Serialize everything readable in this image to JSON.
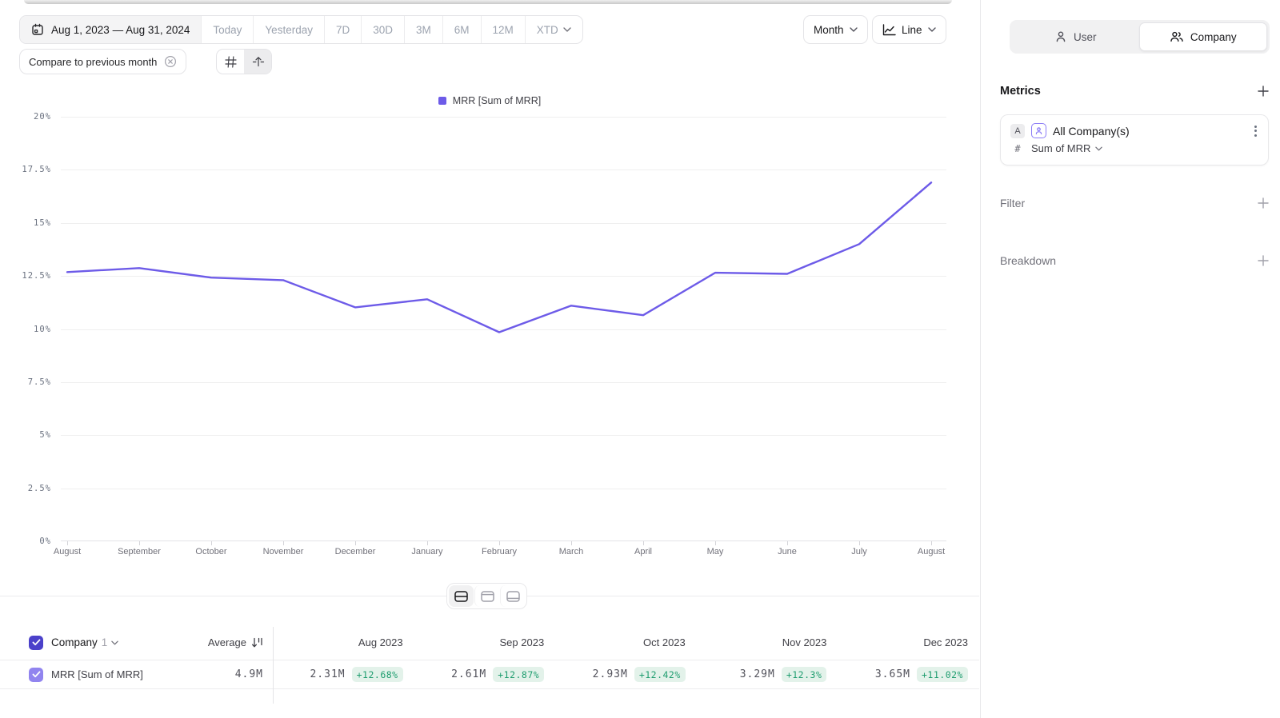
{
  "toolbar": {
    "date_range": "Aug 1, 2023 — Aug 31, 2024",
    "presets": [
      "Today",
      "Yesterday",
      "7D",
      "30D",
      "3M",
      "6M",
      "12M"
    ],
    "xtd_label": "XTD",
    "granularity_label": "Month",
    "chart_type_label": "Line",
    "compare_chip_label": "Compare to previous month"
  },
  "sidebar": {
    "scope_toggle": {
      "user_label": "User",
      "company_label": "Company",
      "selected": "Company"
    },
    "metrics": {
      "title": "Metrics",
      "card": {
        "badge": "A",
        "name": "All Company(s)",
        "agg_prefix": "#",
        "aggregation": "Sum of MRR"
      }
    },
    "filter_label": "Filter",
    "breakdown_label": "Breakdown"
  },
  "chart_data": {
    "type": "line",
    "title": "",
    "legend": [
      "MRR [Sum of MRR]"
    ],
    "legend_position": "top",
    "grid": true,
    "x": [
      "August",
      "September",
      "October",
      "November",
      "December",
      "January",
      "February",
      "March",
      "April",
      "May",
      "June",
      "July",
      "August"
    ],
    "series": [
      {
        "name": "MRR [Sum of MRR]",
        "values": [
          12.68,
          12.87,
          12.42,
          12.3,
          11.02,
          11.4,
          9.85,
          11.1,
          10.65,
          12.65,
          12.6,
          14.0,
          16.9
        ],
        "color": "#6d5be8"
      }
    ],
    "ylim": [
      0,
      20
    ],
    "yticks": [
      "0%",
      "2.5%",
      "5%",
      "7.5%",
      "10%",
      "12.5%",
      "15%",
      "17.5%",
      "20%"
    ],
    "ylabel": "",
    "xlabel": ""
  },
  "table": {
    "group_label": "Company",
    "group_count": "1",
    "average_label": "Average",
    "columns": [
      "Aug 2023",
      "Sep 2023",
      "Oct 2023",
      "Nov 2023",
      "Dec 2023"
    ],
    "rows": [
      {
        "name": "MRR [Sum of MRR]",
        "average": "4.9M",
        "cells": [
          {
            "value": "2.31M",
            "delta": "+12.68%"
          },
          {
            "value": "2.61M",
            "delta": "+12.87%"
          },
          {
            "value": "2.93M",
            "delta": "+12.42%"
          },
          {
            "value": "3.29M",
            "delta": "+12.3%"
          },
          {
            "value": "3.65M",
            "delta": "+11.02%"
          }
        ]
      }
    ]
  },
  "colors": {
    "accent": "#6d5be8",
    "badge_bg": "#e3f2ea",
    "badge_text": "#1f9d6f",
    "checkbox_header": "#4b41ca",
    "checkbox_row": "#9184ef"
  }
}
